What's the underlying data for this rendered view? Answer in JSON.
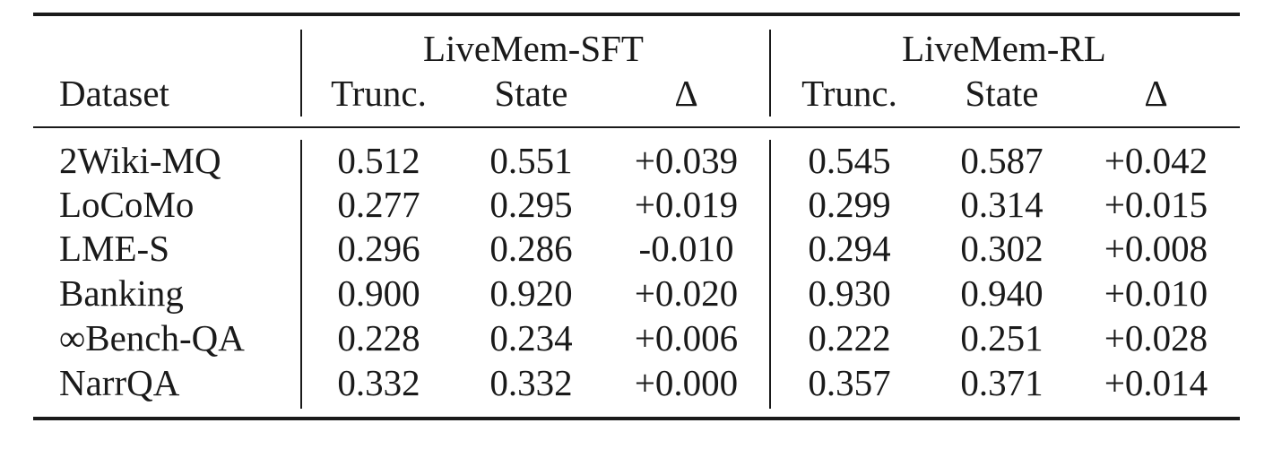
{
  "table": {
    "group_headers": [
      "LiveMem-SFT",
      "LiveMem-RL"
    ],
    "columns": [
      "Dataset",
      "Trunc.",
      "State",
      "Δ",
      "Trunc.",
      "State",
      "Δ"
    ],
    "rows": [
      {
        "dataset": "2Wiki-MQ",
        "values": [
          "0.512",
          "0.551",
          "+0.039",
          "0.545",
          "0.587",
          "+0.042"
        ]
      },
      {
        "dataset": "LoCoMo",
        "values": [
          "0.277",
          "0.295",
          "+0.019",
          "0.299",
          "0.314",
          "+0.015"
        ]
      },
      {
        "dataset": "LME-S",
        "values": [
          "0.296",
          "0.286",
          "-0.010",
          "0.294",
          "0.302",
          "+0.008"
        ]
      },
      {
        "dataset": "Banking",
        "values": [
          "0.900",
          "0.920",
          "+0.020",
          "0.930",
          "0.940",
          "+0.010"
        ]
      },
      {
        "dataset": "∞Bench-QA",
        "values": [
          "0.228",
          "0.234",
          "+0.006",
          "0.222",
          "0.251",
          "+0.028"
        ]
      },
      {
        "dataset": "NarrQA",
        "values": [
          "0.332",
          "0.332",
          "+0.000",
          "0.357",
          "0.371",
          "+0.014"
        ]
      }
    ]
  }
}
